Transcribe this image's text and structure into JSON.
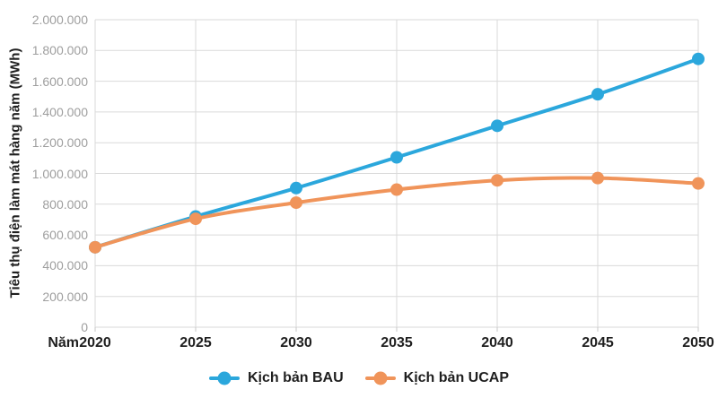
{
  "chart_data": {
    "type": "line",
    "x_axis_title": "Năm",
    "y_axis_title": "Tiêu thụ điện làm mát hàng năm (MWh)",
    "categories": [
      "2020",
      "2025",
      "2030",
      "2035",
      "2040",
      "2045",
      "2050"
    ],
    "series": [
      {
        "name": "Kịch bản BAU",
        "color": "#2BA7DC",
        "values": [
          520000,
          720000,
          905000,
          1105000,
          1310000,
          1515000,
          1745000
        ]
      },
      {
        "name": "Kịch bản UCAP",
        "color": "#F0945A",
        "values": [
          520000,
          705000,
          810000,
          895000,
          955000,
          970000,
          935000
        ]
      }
    ],
    "ylim": [
      0,
      2000000
    ],
    "ytick_step": 200000,
    "ytick_labels": [
      "0",
      "200.000",
      "400.000",
      "600.000",
      "800.000",
      "1.000.000",
      "1.200.000",
      "1.400.000",
      "1.600.000",
      "1.800.000",
      "2.000.000"
    ],
    "grid": true,
    "legend_position": "bottom"
  },
  "colors": {
    "grid": "#dadada",
    "tick_mark": "#c7c7c7",
    "axis_text_muted": "#9e9e9e",
    "axis_text_dark": "#1f1f1f",
    "background": "#ffffff"
  }
}
